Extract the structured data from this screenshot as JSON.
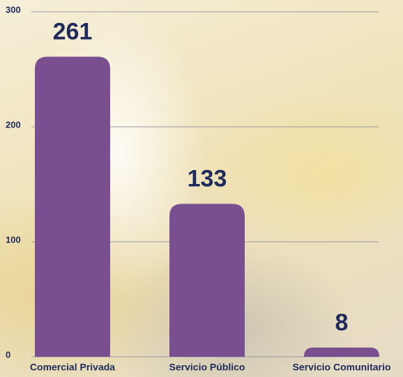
{
  "chart_data": {
    "type": "bar",
    "categories": [
      "Comercial Privada",
      "Servicio Público",
      "Servicio Comunitario"
    ],
    "values": [
      261,
      133,
      8
    ],
    "color": "#7a4f90",
    "ylim": [
      0,
      300
    ],
    "yticks": [
      0,
      100,
      200,
      300
    ],
    "grid": true
  }
}
